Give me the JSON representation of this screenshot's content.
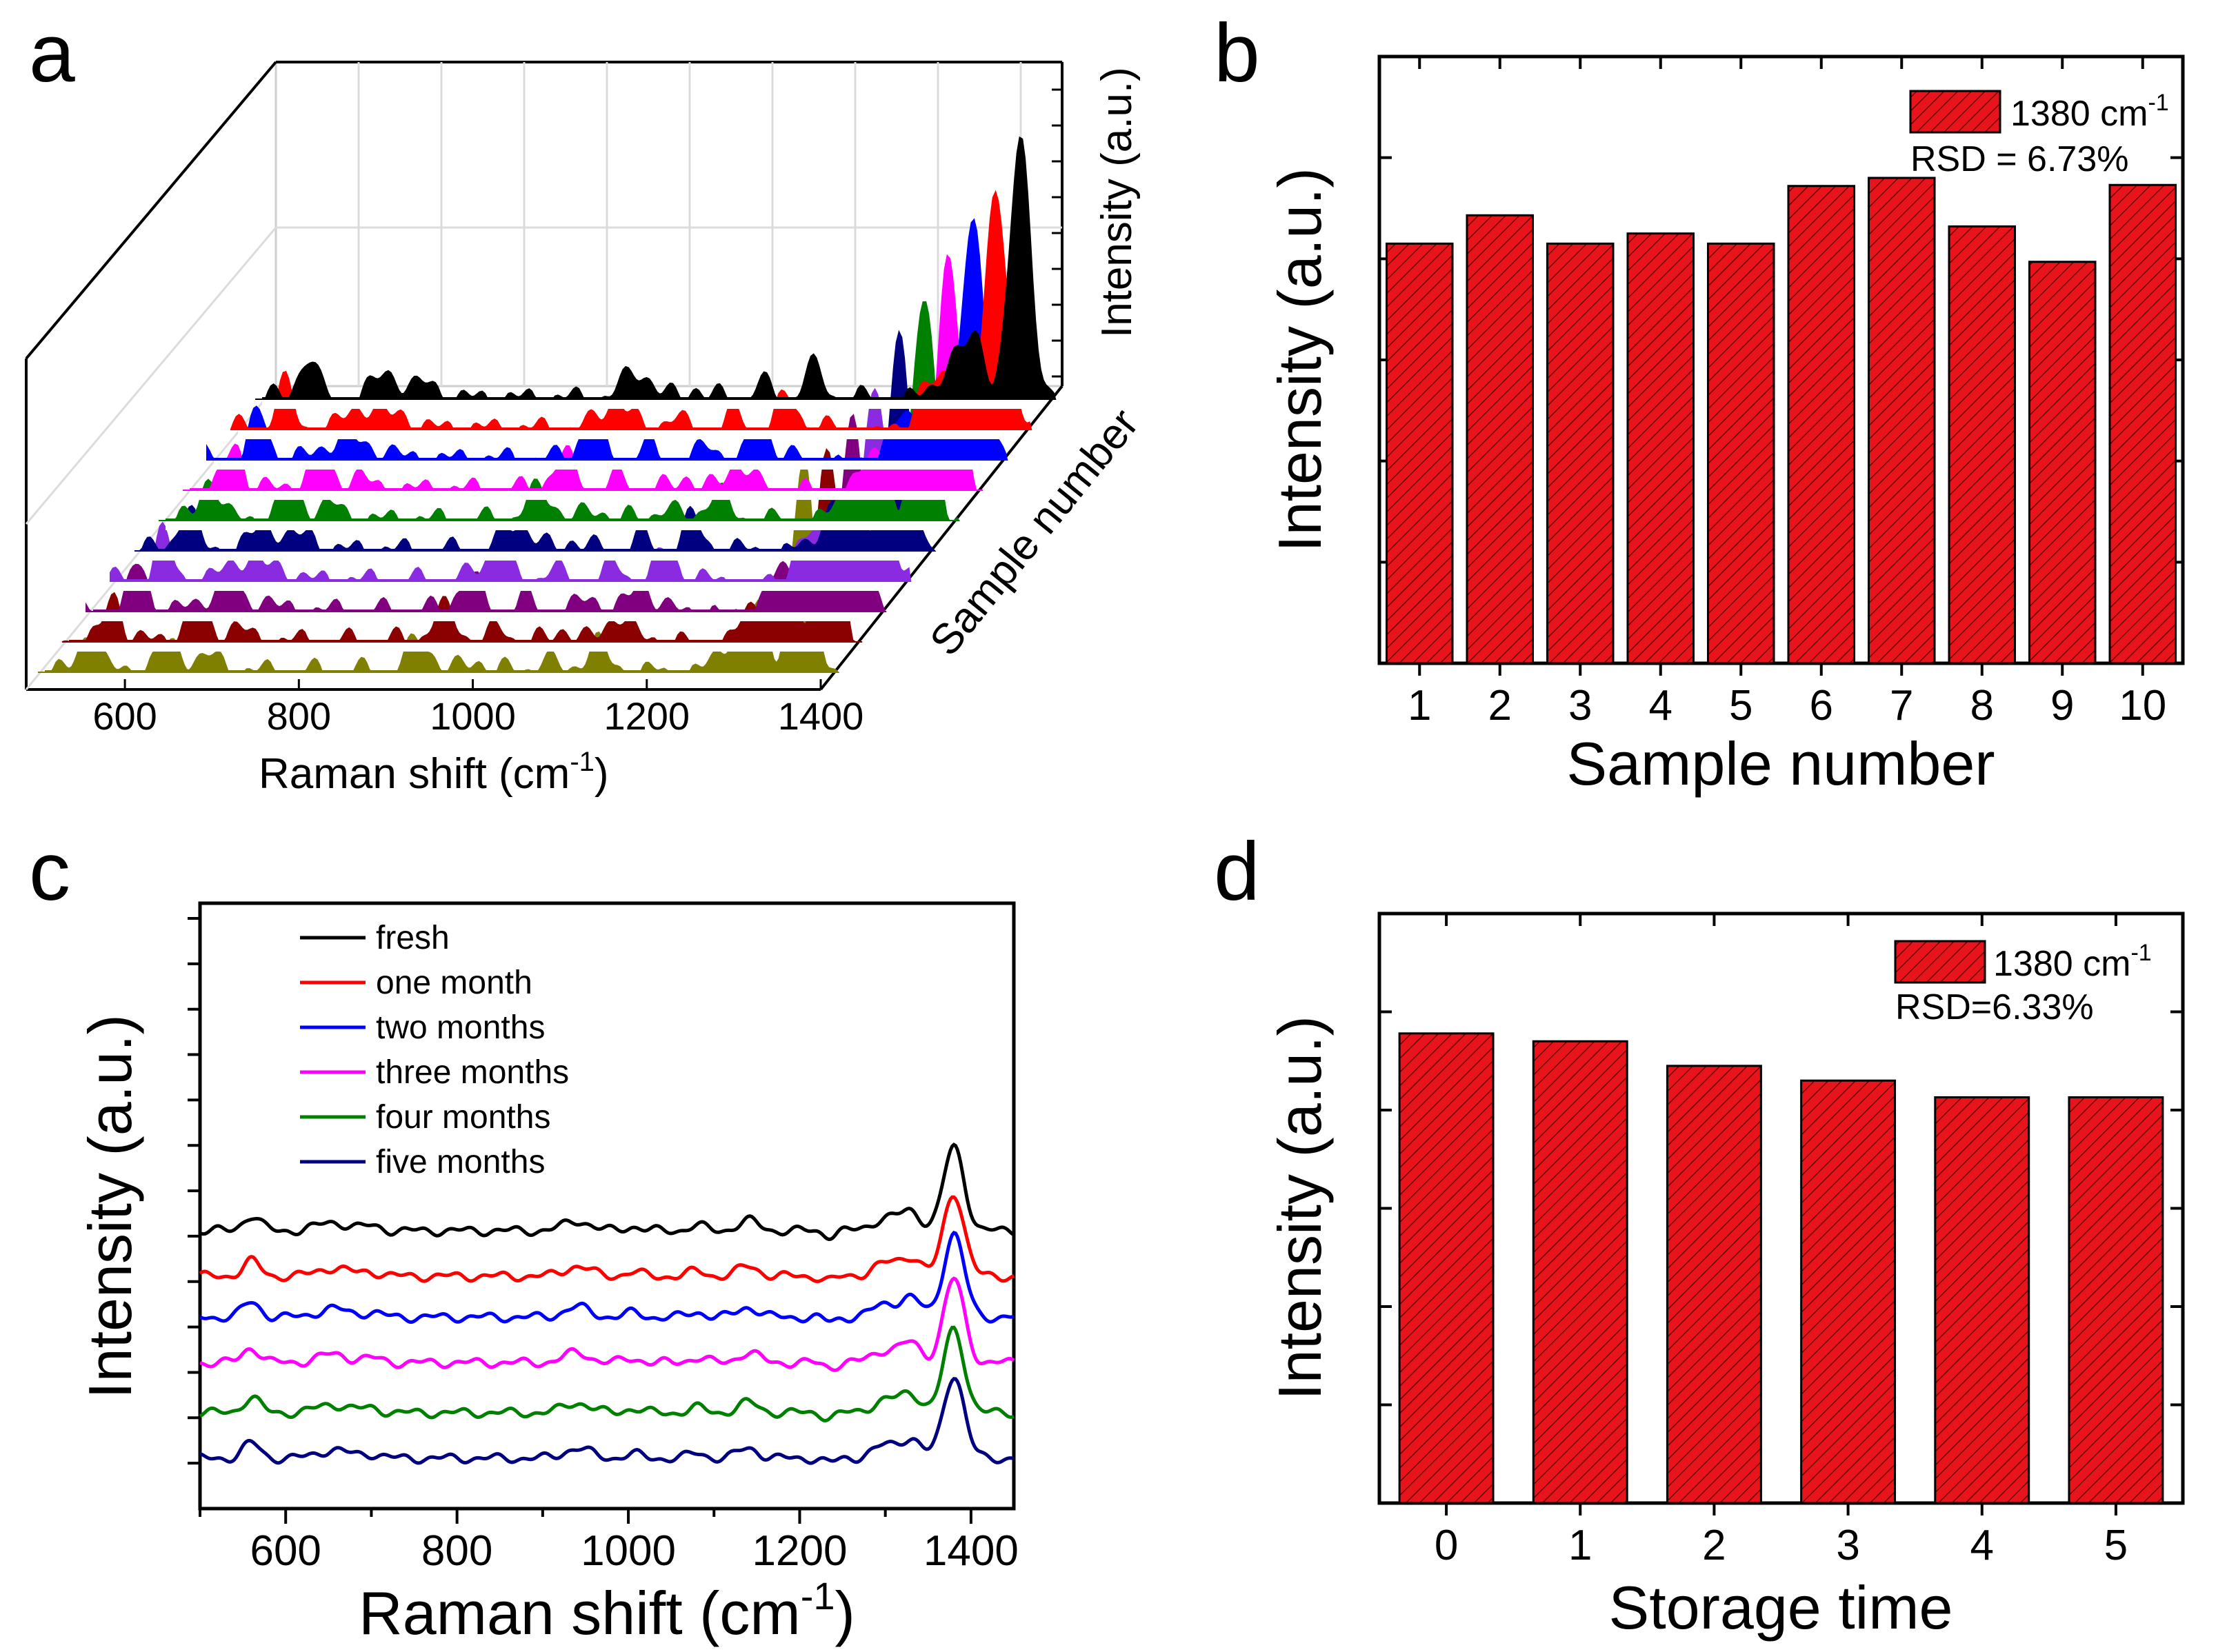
{
  "panel_labels": {
    "a": "a",
    "b": "b",
    "c": "c",
    "d": "d"
  },
  "bar_color": "#e8141c",
  "chart_data": [
    {
      "panel": "a",
      "type": "line",
      "style": "3d-waterfall",
      "title": "",
      "xlabel": "Raman shift (cm",
      "xlabel_sup": "-1",
      "xlabel_end": ")",
      "ylabel": "Intensity (a.u.)",
      "zlabel": "Sample number",
      "xlim": [
        500,
        1400
      ],
      "xticks": [
        600,
        800,
        1000,
        1200,
        1400
      ],
      "series_count": 10,
      "series_colors": [
        "#000000",
        "#ff0000",
        "#0000ff",
        "#ff00ff",
        "#008000",
        "#000080",
        "#8a2be2",
        "#800080",
        "#8b0000",
        "#808000"
      ],
      "series_peak_heights": [
        1.0,
        0.95,
        0.98,
        0.9,
        0.85,
        0.82,
        0.8,
        0.78,
        0.75,
        0.8
      ]
    },
    {
      "panel": "b",
      "type": "bar",
      "title": "",
      "xlabel": "Sample number",
      "ylabel": "Intensity (a.u.)",
      "categories": [
        "1",
        "2",
        "3",
        "4",
        "5",
        "6",
        "7",
        "8",
        "9",
        "10"
      ],
      "values": [
        4.15,
        4.43,
        4.15,
        4.25,
        4.15,
        4.72,
        4.8,
        4.32,
        3.97,
        4.73
      ],
      "ylim": [
        0,
        6
      ],
      "legend": {
        "label": "1380 cm",
        "sup": "-1",
        "rsd": "RSD = 6.73%"
      }
    },
    {
      "panel": "c",
      "type": "line",
      "title": "",
      "xlabel": "Raman shift (cm",
      "xlabel_sup": "-1",
      "xlabel_end": ")",
      "ylabel": "Intensity (a.u.)",
      "xlim": [
        500,
        1450
      ],
      "xticks": [
        600,
        800,
        1000,
        1200,
        1400
      ],
      "series": [
        {
          "name": "fresh",
          "color": "#000000",
          "offset": 5.0
        },
        {
          "name": "one month",
          "color": "#ff0000",
          "offset": 4.0
        },
        {
          "name": "two months",
          "color": "#0000ff",
          "offset": 3.1
        },
        {
          "name": "three months",
          "color": "#ff00ff",
          "offset": 2.1
        },
        {
          "name": "four months",
          "color": "#008000",
          "offset": 1.0
        },
        {
          "name": "five months",
          "color": "#000080",
          "offset": 0.0
        }
      ],
      "peak_center": 1380
    },
    {
      "panel": "d",
      "type": "bar",
      "title": "",
      "xlabel": "Storage time",
      "ylabel": "Intensity (a.u.)",
      "categories": [
        "0",
        "1",
        "2",
        "3",
        "4",
        "5"
      ],
      "values": [
        4.78,
        4.7,
        4.45,
        4.3,
        4.13,
        4.13
      ],
      "ylim": [
        0,
        6
      ],
      "legend": {
        "label": "1380 cm",
        "sup": "-1",
        "rsd": "RSD=6.33%"
      }
    }
  ]
}
